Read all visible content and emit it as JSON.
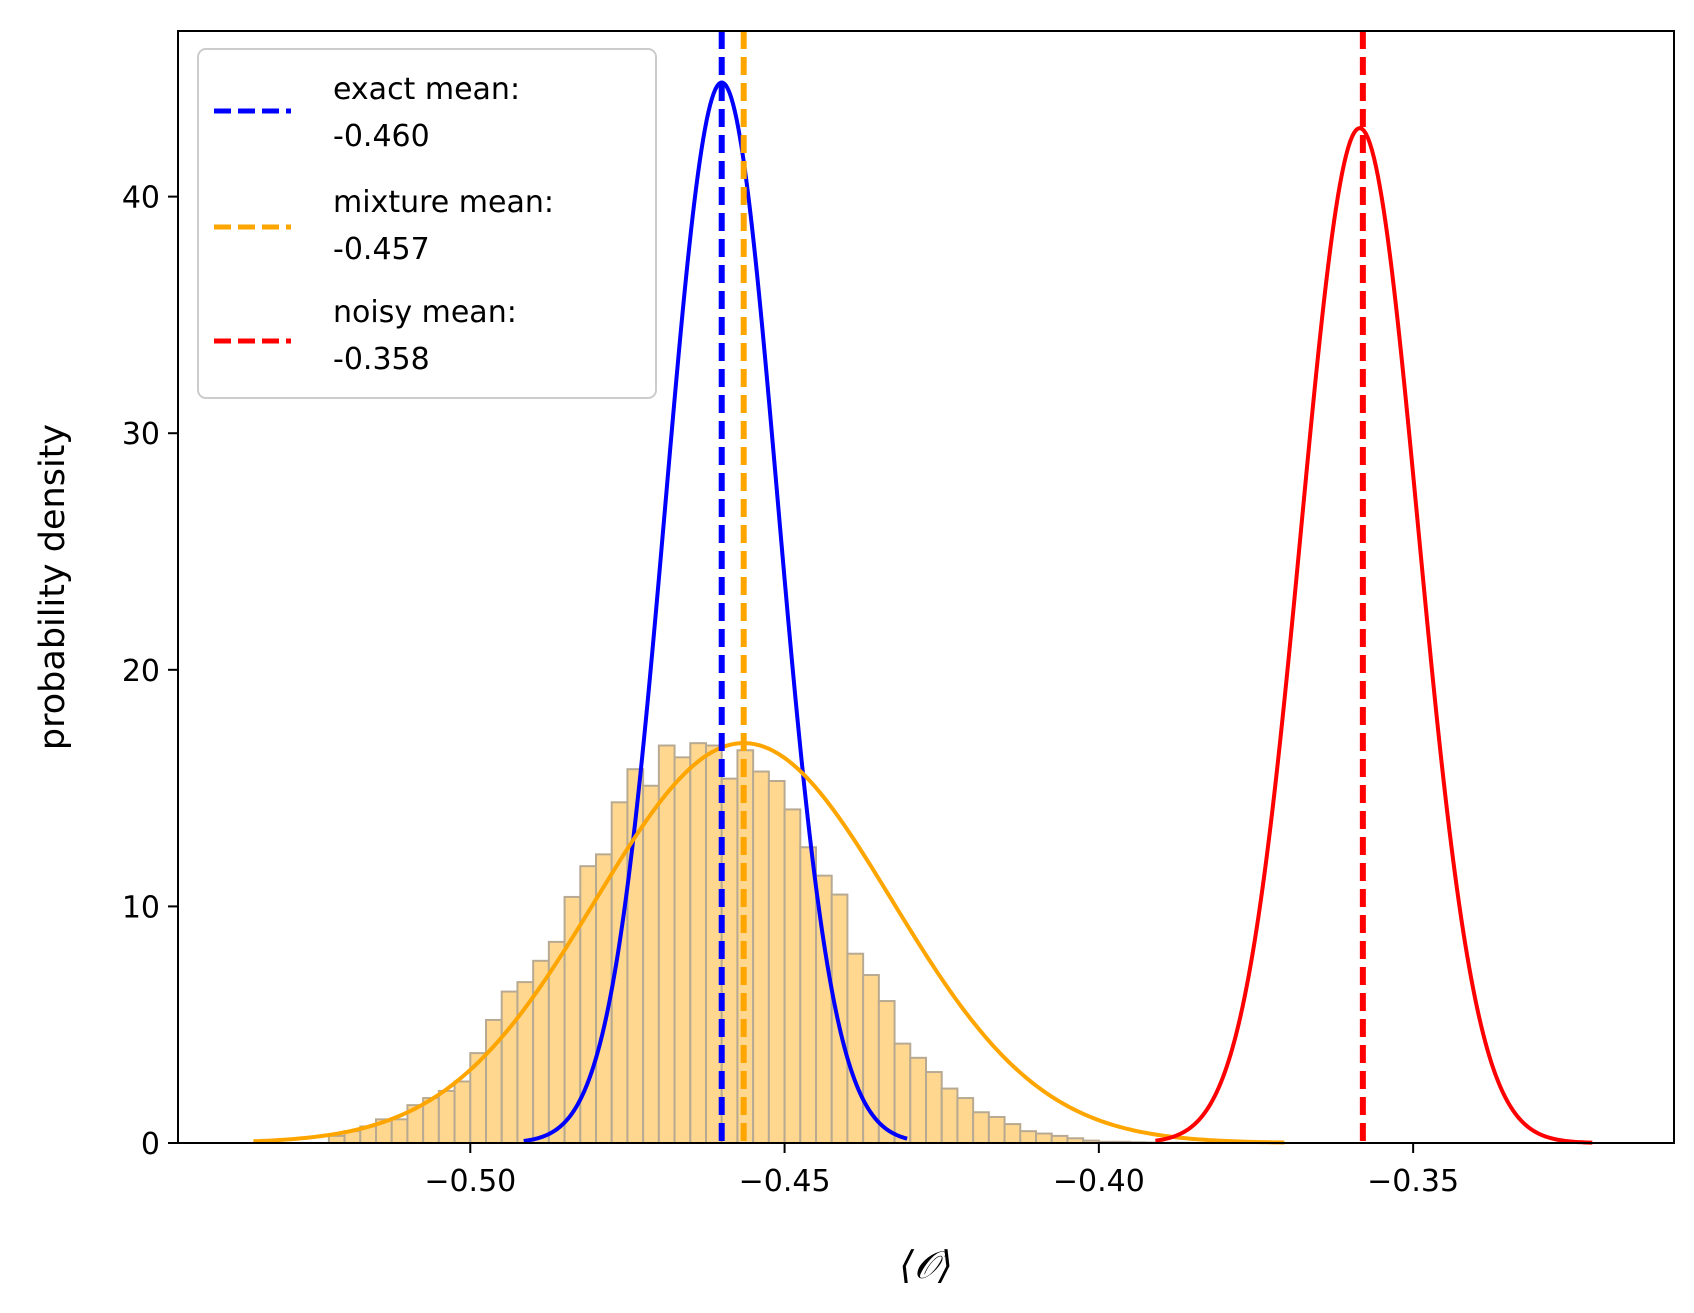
{
  "chart_data": {
    "type": "histogram-with-density",
    "title": "",
    "xlabel": "⟨𝒪⟩",
    "ylabel": "probability density",
    "xlim": [
      -0.5465,
      -0.3085
    ],
    "ylim": [
      0,
      47
    ],
    "xticks": [
      -0.5,
      -0.45,
      -0.4,
      -0.35
    ],
    "xtick_labels": [
      "−0.50",
      "−0.45",
      "−0.40",
      "−0.35"
    ],
    "yticks": [
      0,
      10,
      20,
      30,
      40
    ],
    "ytick_labels": [
      "0",
      "10",
      "20",
      "30",
      "40"
    ],
    "grid": false,
    "legend_position": "upper-left",
    "histogram": {
      "name": "mixture samples",
      "color": "#FFD78F",
      "edge_color": "#b8aa92",
      "bin_edges": [
        -0.5225,
        -0.52,
        -0.5175,
        -0.515,
        -0.5125,
        -0.51,
        -0.5075,
        -0.505,
        -0.5025,
        -0.5,
        -0.4975,
        -0.495,
        -0.4925,
        -0.49,
        -0.4875,
        -0.485,
        -0.4825,
        -0.48,
        -0.4775,
        -0.475,
        -0.4725,
        -0.47,
        -0.4675,
        -0.465,
        -0.4625,
        -0.46,
        -0.4575,
        -0.455,
        -0.4525,
        -0.45,
        -0.4475,
        -0.445,
        -0.4425,
        -0.44,
        -0.4375,
        -0.435,
        -0.4325,
        -0.43,
        -0.4275,
        -0.425,
        -0.4225,
        -0.42,
        -0.4175,
        -0.415,
        -0.4125,
        -0.41,
        -0.4075,
        -0.405,
        -0.4025,
        -0.4,
        -0.3975,
        -0.395,
        -0.3925,
        -0.39,
        -0.3875,
        -0.385,
        -0.3825,
        -0.38,
        -0.3775,
        -0.375,
        -0.3725,
        -0.37
      ],
      "values": [
        0.3,
        0.5,
        0.7,
        1.0,
        1.0,
        1.6,
        1.9,
        2.2,
        2.6,
        3.8,
        5.2,
        6.4,
        6.8,
        7.7,
        8.5,
        10.4,
        11.7,
        12.2,
        14.4,
        15.8,
        15.1,
        16.8,
        16.3,
        16.9,
        16.8,
        15.4,
        16.6,
        15.7,
        15.3,
        14.1,
        12.5,
        11.3,
        10.5,
        8.0,
        7.1,
        6.0,
        4.2,
        3.6,
        3.0,
        2.3,
        1.9,
        1.3,
        1.1,
        0.8,
        0.5,
        0.4,
        0.3,
        0.2,
        0.1,
        0.05,
        0.05,
        0.03,
        0.02,
        0.01,
        0.01,
        0.0,
        0.0,
        0.0,
        0.0,
        0.0,
        0.0
      ]
    },
    "series": [
      {
        "name": "exact",
        "type": "gaussian",
        "mean": -0.46,
        "sigma": 0.0089,
        "x_range": [
          -0.4915,
          -0.4305
        ],
        "color": "#0000ff"
      },
      {
        "name": "mixture",
        "type": "gaussian",
        "mean": -0.4565,
        "sigma": 0.0236,
        "x_range": [
          -0.5345,
          -0.3705
        ],
        "color": "#ffa500"
      },
      {
        "name": "noisy",
        "type": "gaussian",
        "mean": -0.3585,
        "sigma": 0.0093,
        "x_range": [
          -0.391,
          -0.3215
        ],
        "color": "#ff0000"
      }
    ],
    "vlines": [
      {
        "name": "exact-mean-line",
        "x": -0.46,
        "color": "#0000ff"
      },
      {
        "name": "mixture-mean-line",
        "x": -0.4565,
        "color": "#ffa500"
      },
      {
        "name": "noisy-mean-line",
        "x": -0.358,
        "color": "#ff0000"
      }
    ],
    "legend": [
      {
        "line1": "exact mean:",
        "line2": "-0.460",
        "color": "#0000ff"
      },
      {
        "line1": "mixture mean:",
        "line2": "-0.457",
        "color": "#ffa500"
      },
      {
        "line1": "noisy mean:",
        "line2": "-0.358",
        "color": "#ff0000"
      }
    ]
  }
}
